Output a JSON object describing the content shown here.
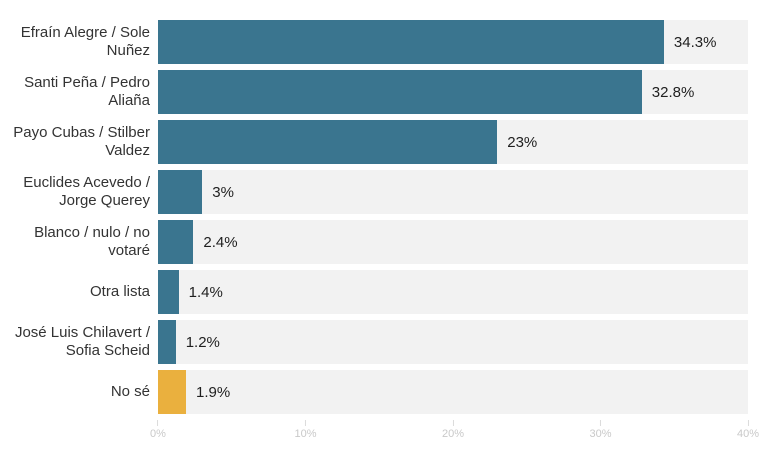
{
  "chart_data": {
    "type": "bar",
    "orientation": "horizontal",
    "title": "",
    "xlabel": "",
    "ylabel": "",
    "categories": [
      "Efraín Alegre / Sole Nuñez",
      "Santi Peña / Pedro Aliaña",
      "Payo Cubas / Stilber Valdez",
      "Euclides Acevedo / Jorge Querey",
      "Blanco / nulo / no votaré",
      "Otra lista",
      "José Luis Chilavert / Sofia Scheid",
      "No sé"
    ],
    "values": [
      34.3,
      32.8,
      23,
      3,
      2.4,
      1.4,
      1.2,
      1.9
    ],
    "value_labels": [
      "34.3%",
      "32.8%",
      "23%",
      "3%",
      "2.4%",
      "1.4%",
      "1.2%",
      "1.9%"
    ],
    "bar_colors": [
      "#3a758f",
      "#3a758f",
      "#3a758f",
      "#3a758f",
      "#3a758f",
      "#3a758f",
      "#3a758f",
      "#eab03e"
    ],
    "xlim": [
      0,
      40
    ],
    "x_tick_values": [
      0,
      10,
      20,
      30,
      40
    ],
    "x_tick_labels": [
      "0%",
      "10%",
      "20%",
      "30%",
      "40%"
    ],
    "grid": false,
    "legend": false,
    "colors": {
      "bar_teal": "#3a758f",
      "bar_yellow": "#eab03e",
      "track": "#f2f2f2",
      "label_text": "#333333",
      "value_text": "#1f1f1f",
      "axis_text": "#c9c9c9",
      "tick_line": "#dbdbdb",
      "background": "#ffffff"
    }
  }
}
